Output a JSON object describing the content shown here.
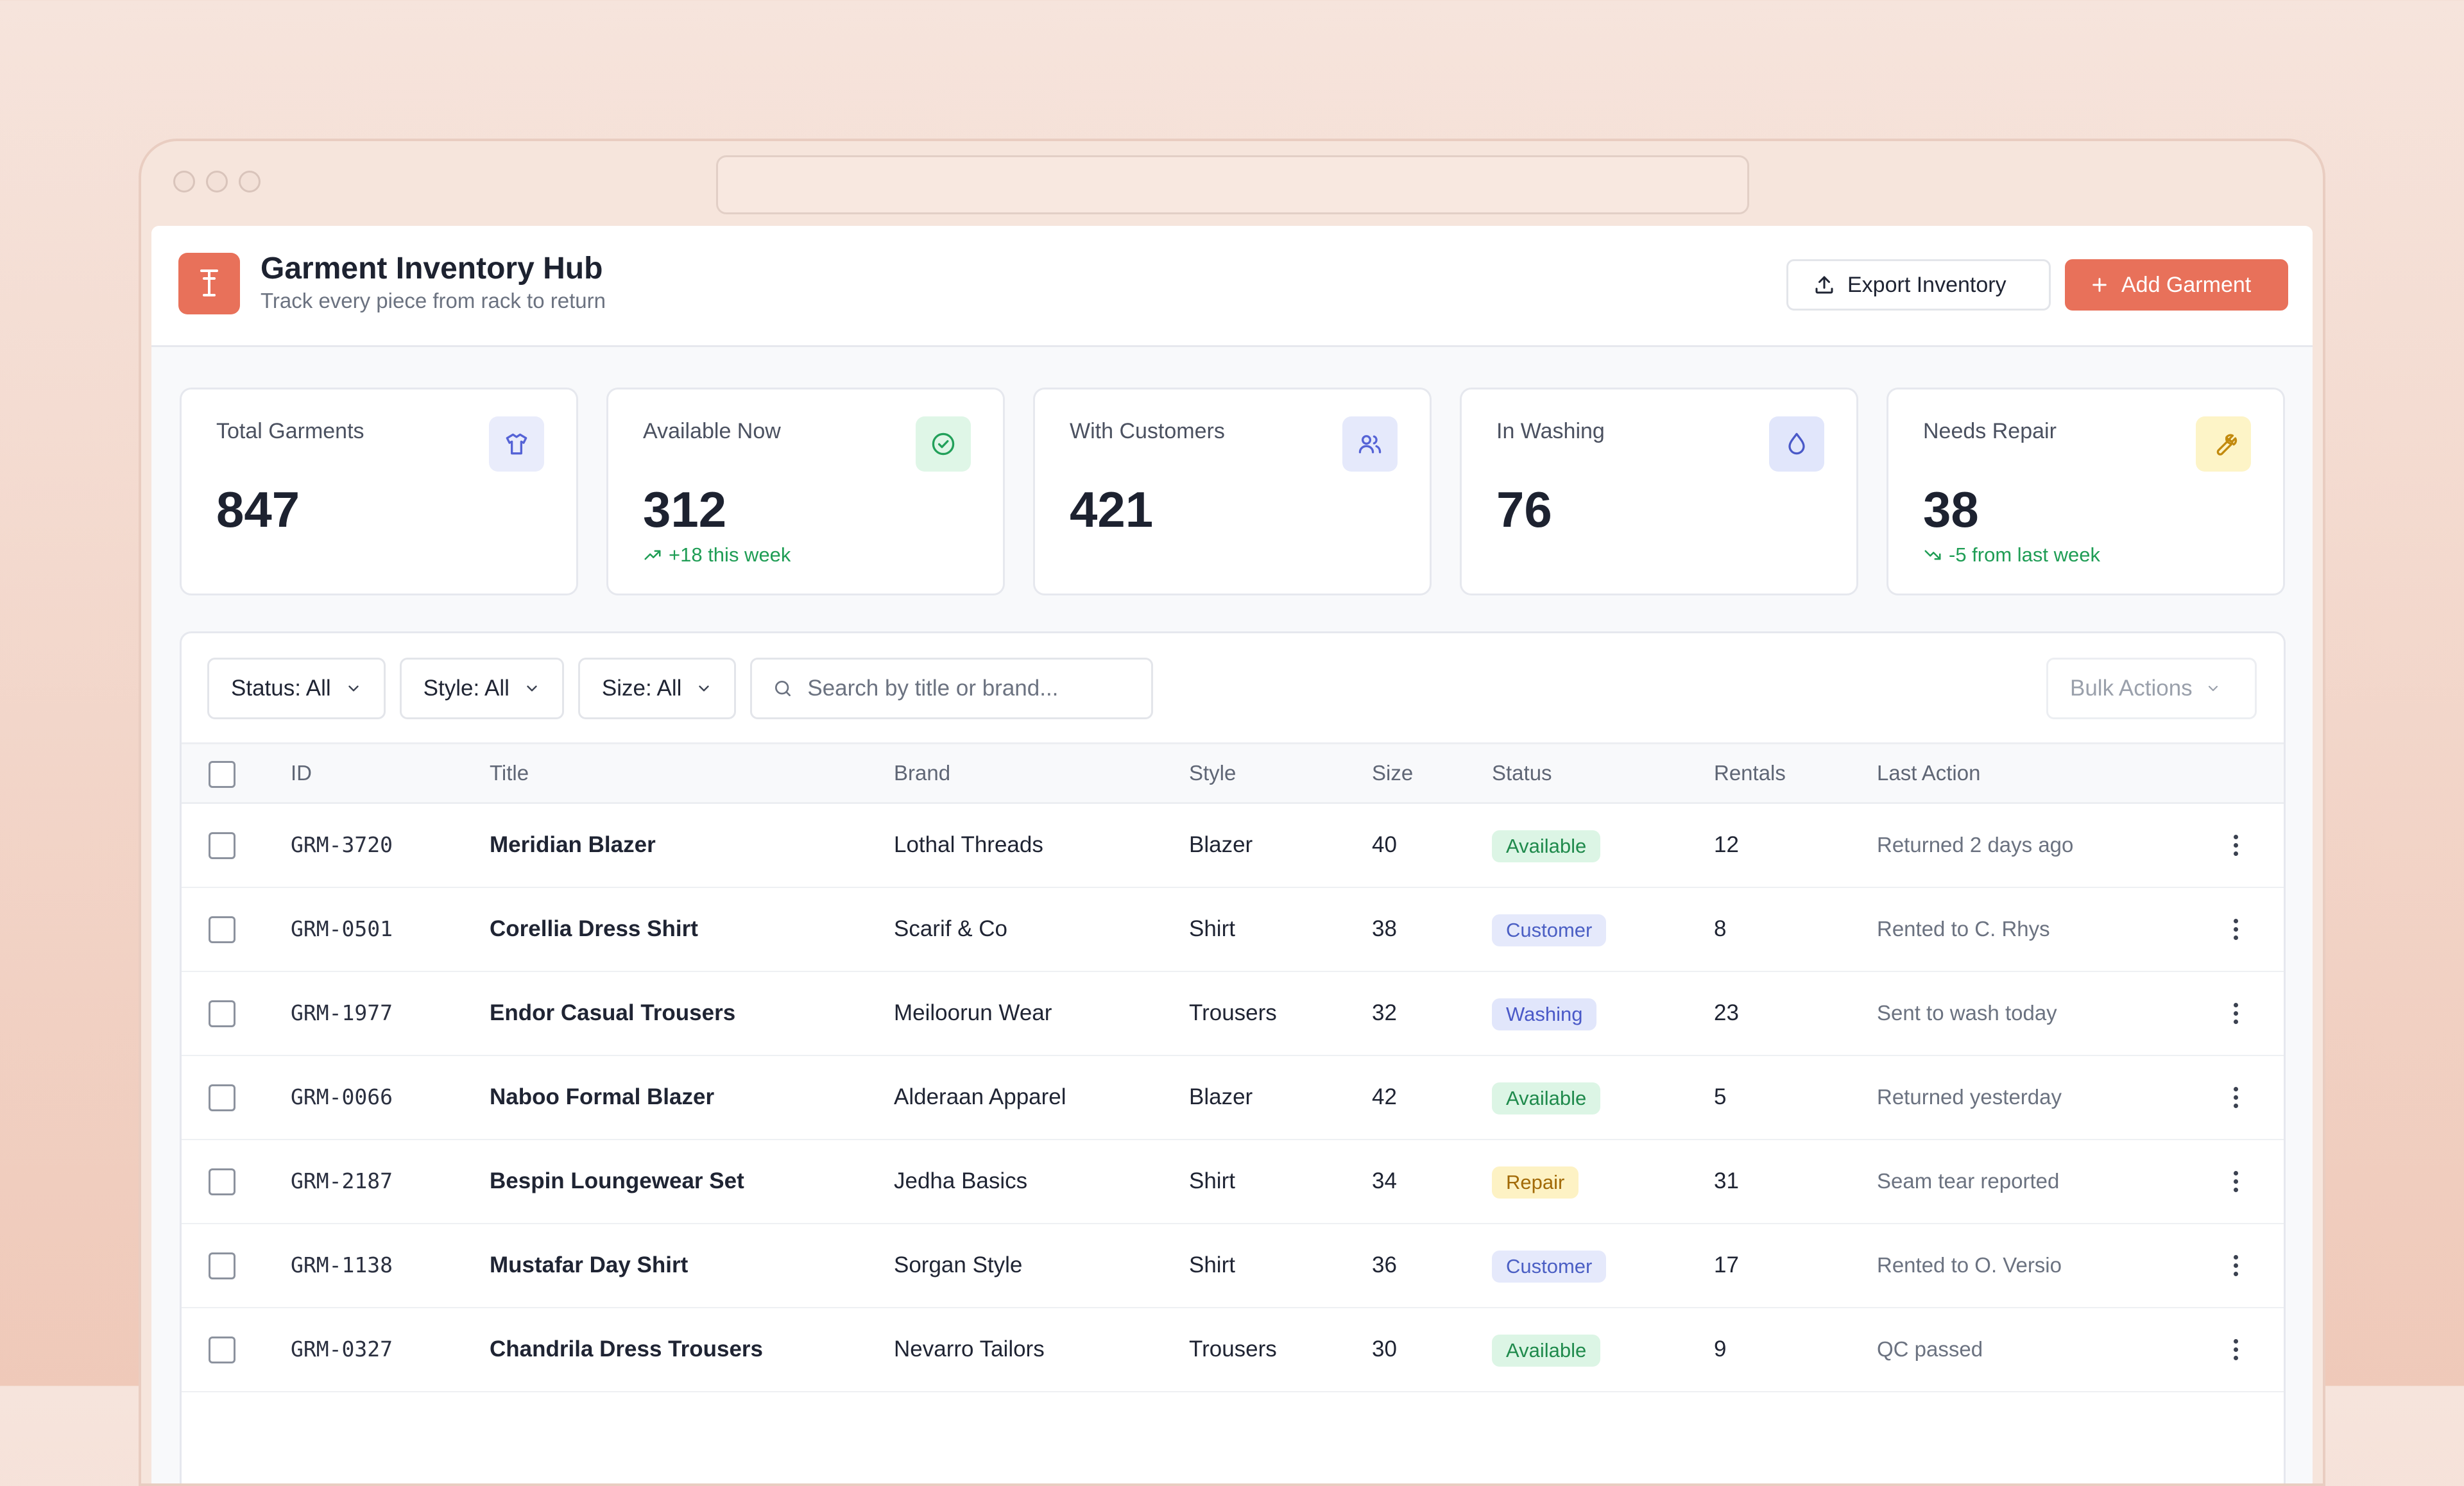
{
  "header": {
    "title": "Garment Inventory Hub",
    "subtitle": "Track every piece from rack to return",
    "export_label": "Export Inventory",
    "add_label": "Add Garment"
  },
  "colors": {
    "accent": "#e8715a",
    "success": "#1f9d55"
  },
  "stats": [
    {
      "label": "Total Garments",
      "value": "847",
      "trend": "",
      "icon": "shirt-icon",
      "icon_bg": "#e9ecfb",
      "icon_color": "#5563d6"
    },
    {
      "label": "Available Now",
      "value": "312",
      "trend": "+18 this week",
      "icon": "check-circle-icon",
      "icon_bg": "#dff6e7",
      "icon_color": "#22a05a"
    },
    {
      "label": "With Customers",
      "value": "421",
      "trend": "",
      "icon": "users-icon",
      "icon_bg": "#e5e9fb",
      "icon_color": "#5563d6"
    },
    {
      "label": "In Washing",
      "value": "76",
      "trend": "",
      "icon": "droplet-icon",
      "icon_bg": "#e1e6fb",
      "icon_color": "#4a59c8"
    },
    {
      "label": "Needs Repair",
      "value": "38",
      "trend": "-5 from last week",
      "icon": "wrench-icon",
      "icon_bg": "#fdf4c7",
      "icon_color": "#c28a0e"
    }
  ],
  "filters": {
    "status": "Status: All",
    "style": "Style: All",
    "size": "Size: All",
    "search_placeholder": "Search by title or brand...",
    "bulk_label": "Bulk Actions"
  },
  "table": {
    "columns": {
      "id": "ID",
      "title": "Title",
      "brand": "Brand",
      "style": "Style",
      "size": "Size",
      "status": "Status",
      "rentals": "Rentals",
      "last_action": "Last Action"
    },
    "rows": [
      {
        "id": "GRM-3720",
        "title": "Meridian Blazer",
        "brand": "Lothal Threads",
        "style": "Blazer",
        "size": "40",
        "status": "Available",
        "status_kind": "available",
        "rentals": "12",
        "last_action": "Returned 2 days ago"
      },
      {
        "id": "GRM-0501",
        "title": "Corellia Dress Shirt",
        "brand": "Scarif & Co",
        "style": "Shirt",
        "size": "38",
        "status": "Customer",
        "status_kind": "customer",
        "rentals": "8",
        "last_action": "Rented to C. Rhys"
      },
      {
        "id": "GRM-1977",
        "title": "Endor Casual Trousers",
        "brand": "Meiloorun Wear",
        "style": "Trousers",
        "size": "32",
        "status": "Washing",
        "status_kind": "washing",
        "rentals": "23",
        "last_action": "Sent to wash today"
      },
      {
        "id": "GRM-0066",
        "title": "Naboo Formal Blazer",
        "brand": "Alderaan Apparel",
        "style": "Blazer",
        "size": "42",
        "status": "Available",
        "status_kind": "available",
        "rentals": "5",
        "last_action": "Returned yesterday"
      },
      {
        "id": "GRM-2187",
        "title": "Bespin Loungewear Set",
        "brand": "Jedha Basics",
        "style": "Shirt",
        "size": "34",
        "status": "Repair",
        "status_kind": "repair",
        "rentals": "31",
        "last_action": "Seam tear reported"
      },
      {
        "id": "GRM-1138",
        "title": "Mustafar Day Shirt",
        "brand": "Sorgan Style",
        "style": "Shirt",
        "size": "36",
        "status": "Customer",
        "status_kind": "customer",
        "rentals": "17",
        "last_action": "Rented to O. Versio"
      },
      {
        "id": "GRM-0327",
        "title": "Chandrila Dress Trousers",
        "brand": "Nevarro Tailors",
        "style": "Trousers",
        "size": "30",
        "status": "Available",
        "status_kind": "available",
        "rentals": "9",
        "last_action": "QC passed"
      }
    ]
  }
}
